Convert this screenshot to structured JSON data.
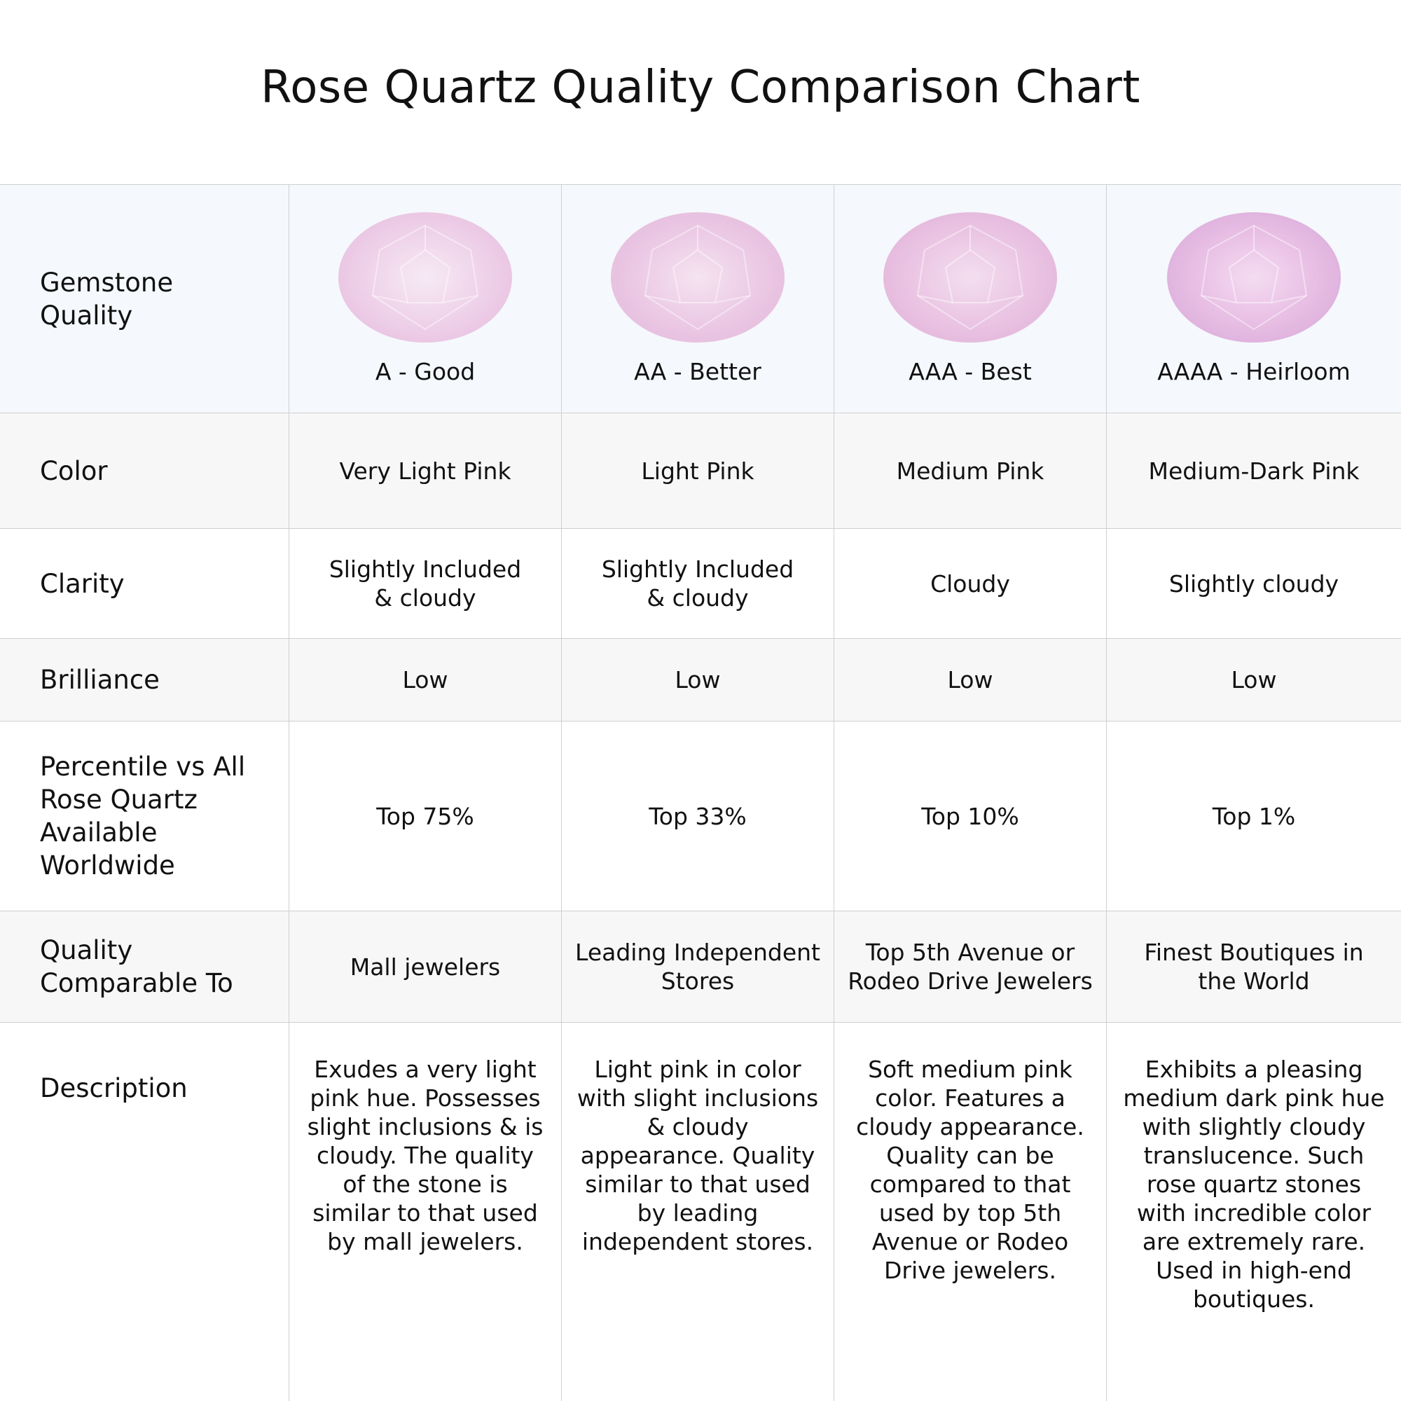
{
  "title": "Rose Quartz Quality Comparison Chart",
  "table": {
    "header": {
      "label": "Gemstone\nQuality",
      "grades": [
        "A - Good",
        "AA - Better",
        "AAA - Best",
        "AAAA - Heirloom"
      ]
    },
    "rows": [
      {
        "label": "Color",
        "cells": [
          "Very Light Pink",
          "Light Pink",
          "Medium Pink",
          "Medium-Dark Pink"
        ]
      },
      {
        "label": "Clarity",
        "cells": [
          "Slightly Included\n& cloudy",
          "Slightly Included\n& cloudy",
          "Cloudy",
          "Slightly cloudy"
        ]
      },
      {
        "label": "Brilliance",
        "cells": [
          "Low",
          "Low",
          "Low",
          "Low"
        ]
      },
      {
        "label": "Percentile vs All\nRose Quartz\nAvailable\nWorldwide",
        "cells": [
          "Top 75%",
          "Top 33%",
          "Top 10%",
          "Top 1%"
        ]
      },
      {
        "label": "Quality\nComparable To",
        "cells": [
          "Mall jewelers",
          "Leading Independent\nStores",
          "Top 5th Avenue or\nRodeo Drive Jewelers",
          "Finest Boutiques in\nthe World"
        ]
      },
      {
        "label": "Description",
        "cells": [
          "Exudes a very light pink hue. Possesses slight inclusions & is cloudy. The quality of the stone is similar to that used by mall jewelers.",
          "Light pink in color with slight inclusions & cloudy appearance. Quality similar to that used by leading independent stores.",
          "Soft medium pink color. Features a cloudy appearance. Quality can be compared to that used by top 5th Avenue or Rodeo Drive jewelers.",
          "Exhibits a pleasing medium dark pink hue with slightly cloudy translucence. Such rose quartz stones with incredible color are extremely rare. Used in high-end boutiques."
        ]
      }
    ]
  }
}
